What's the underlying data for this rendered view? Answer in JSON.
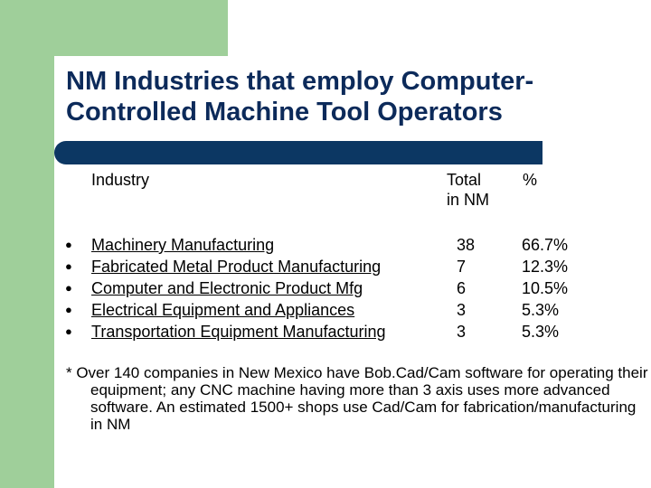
{
  "slide": {
    "title": "NM Industries that employ Computer-\nControlled Machine Tool Operators",
    "headers": {
      "industry": "Industry",
      "total": "Total\nin NM",
      "percent": "%"
    },
    "rows": [
      {
        "industry": "Machinery Manufacturing",
        "total": "38",
        "percent": "66.7%"
      },
      {
        "industry": "Fabricated Metal Product Manufacturing",
        "total": "7",
        "percent": "12.3%"
      },
      {
        "industry": "Computer and Electronic Product Mfg",
        "total": "6",
        "percent": "10.5%"
      },
      {
        "industry": "Electrical Equipment and Appliances",
        "total": "3",
        "percent": "5.3%"
      },
      {
        "industry": "Transportation Equipment Manufacturing",
        "total": "3",
        "percent": "5.3%"
      }
    ],
    "bullet": "●",
    "footnote": "* Over 140 companies in New Mexico have Bob.Cad/Cam software for operating their equipment; any CNC machine having more than 3 axis uses more advanced software.  An estimated 1500+ shops use Cad/Cam for fabrication/manufacturing in NM"
  },
  "colors": {
    "accent_green": "#9fcf9a",
    "title_navy": "#0c2a5a",
    "divider_navy": "#0c3763"
  }
}
